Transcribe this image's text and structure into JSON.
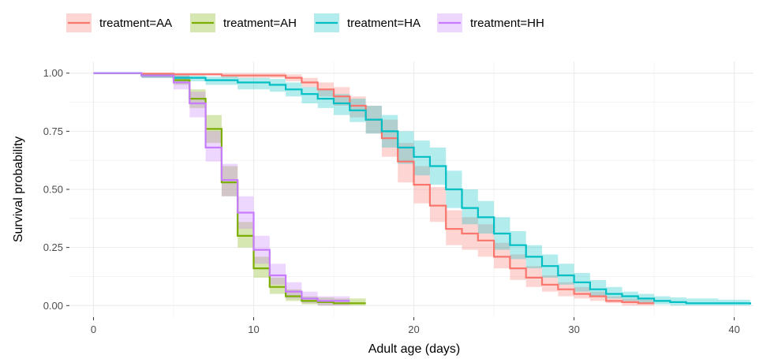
{
  "chart_data": {
    "type": "line",
    "title": "",
    "xlabel": "Adult age (days)",
    "ylabel": "Survival probability",
    "xlim": [
      -1.5,
      41.2
    ],
    "ylim": [
      -0.05,
      1.05
    ],
    "x_ticks": [
      0,
      10,
      20,
      30,
      40
    ],
    "y_ticks": [
      0.0,
      0.25,
      0.5,
      0.75,
      1.0
    ],
    "x_tick_labels": [
      "0",
      "10",
      "20",
      "30",
      "40"
    ],
    "y_tick_labels": [
      "0.00",
      "0.25",
      "0.50",
      "0.75",
      "1.00"
    ],
    "grid": true,
    "legend_position": "top",
    "step": true,
    "series": [
      {
        "name": "treatment=AA",
        "color": "#F8766D",
        "x": [
          0,
          3,
          5,
          8,
          12,
          13,
          14,
          15,
          16,
          17,
          18,
          19,
          20,
          21,
          22,
          23,
          24,
          25,
          26,
          27,
          28,
          29,
          30,
          31,
          32,
          33,
          34,
          35
        ],
        "y": [
          1.0,
          0.998,
          0.995,
          0.99,
          0.98,
          0.96,
          0.93,
          0.9,
          0.86,
          0.8,
          0.72,
          0.62,
          0.52,
          0.43,
          0.33,
          0.31,
          0.28,
          0.21,
          0.16,
          0.12,
          0.09,
          0.07,
          0.05,
          0.04,
          0.02,
          0.015,
          0.01,
          0.01
        ],
        "lower": [
          1.0,
          0.995,
          0.99,
          0.98,
          0.965,
          0.94,
          0.9,
          0.86,
          0.81,
          0.74,
          0.64,
          0.53,
          0.44,
          0.36,
          0.26,
          0.24,
          0.21,
          0.16,
          0.11,
          0.08,
          0.06,
          0.04,
          0.03,
          0.02,
          0.01,
          0.0,
          0.0,
          0.0
        ],
        "upper": [
          1.0,
          1.0,
          1.0,
          1.0,
          0.995,
          0.98,
          0.96,
          0.94,
          0.9,
          0.86,
          0.8,
          0.7,
          0.6,
          0.51,
          0.41,
          0.38,
          0.35,
          0.27,
          0.22,
          0.17,
          0.13,
          0.1,
          0.08,
          0.06,
          0.04,
          0.03,
          0.025,
          0.02
        ]
      },
      {
        "name": "treatment=AH",
        "color": "#7CAE00",
        "x": [
          0,
          3,
          5,
          6,
          7,
          8,
          9,
          10,
          11,
          12,
          13,
          14,
          15,
          16,
          17
        ],
        "y": [
          1.0,
          0.99,
          0.97,
          0.89,
          0.76,
          0.53,
          0.3,
          0.16,
          0.08,
          0.04,
          0.02,
          0.015,
          0.01,
          0.01,
          0.01
        ],
        "lower": [
          1.0,
          0.98,
          0.95,
          0.85,
          0.7,
          0.47,
          0.25,
          0.12,
          0.05,
          0.02,
          0.005,
          0.0,
          0.0,
          0.0,
          0.0
        ],
        "upper": [
          1.0,
          1.0,
          0.99,
          0.93,
          0.82,
          0.6,
          0.36,
          0.21,
          0.12,
          0.07,
          0.04,
          0.035,
          0.03,
          0.03,
          0.03
        ]
      },
      {
        "name": "treatment=HA",
        "color": "#00BFC4",
        "x": [
          0,
          3,
          5,
          7,
          9,
          11,
          12,
          13,
          14,
          15,
          16,
          17,
          18,
          19,
          20,
          21,
          22,
          23,
          24,
          25,
          26,
          27,
          28,
          29,
          30,
          31,
          32,
          33,
          34,
          35,
          36,
          37,
          38,
          39,
          40,
          41
        ],
        "y": [
          1.0,
          0.99,
          0.98,
          0.97,
          0.96,
          0.95,
          0.93,
          0.91,
          0.89,
          0.87,
          0.84,
          0.8,
          0.75,
          0.68,
          0.64,
          0.6,
          0.5,
          0.42,
          0.38,
          0.31,
          0.26,
          0.21,
          0.17,
          0.13,
          0.1,
          0.07,
          0.05,
          0.04,
          0.03,
          0.02,
          0.015,
          0.01,
          0.01,
          0.01,
          0.01,
          0.005
        ],
        "lower": [
          1.0,
          0.98,
          0.965,
          0.95,
          0.93,
          0.92,
          0.9,
          0.87,
          0.85,
          0.82,
          0.79,
          0.74,
          0.68,
          0.61,
          0.56,
          0.52,
          0.42,
          0.35,
          0.31,
          0.24,
          0.2,
          0.16,
          0.12,
          0.09,
          0.06,
          0.04,
          0.03,
          0.02,
          0.01,
          0.005,
          0.0,
          0.0,
          0.0,
          0.0,
          0.0,
          0.0
        ],
        "upper": [
          1.0,
          1.0,
          0.99,
          0.985,
          0.98,
          0.975,
          0.96,
          0.94,
          0.93,
          0.91,
          0.89,
          0.86,
          0.82,
          0.75,
          0.71,
          0.68,
          0.58,
          0.5,
          0.45,
          0.38,
          0.32,
          0.26,
          0.22,
          0.18,
          0.14,
          0.11,
          0.08,
          0.06,
          0.05,
          0.04,
          0.035,
          0.03,
          0.03,
          0.025,
          0.025,
          0.02
        ]
      },
      {
        "name": "treatment=HH",
        "color": "#C77CFF",
        "x": [
          0,
          3,
          5,
          6,
          7,
          8,
          9,
          10,
          11,
          12,
          13,
          14,
          15,
          16
        ],
        "y": [
          1.0,
          0.99,
          0.96,
          0.87,
          0.68,
          0.54,
          0.4,
          0.24,
          0.13,
          0.06,
          0.03,
          0.02,
          0.02,
          0.02
        ],
        "lower": [
          1.0,
          0.98,
          0.93,
          0.81,
          0.62,
          0.47,
          0.33,
          0.18,
          0.09,
          0.03,
          0.01,
          0.0,
          0.0,
          0.0
        ],
        "upper": [
          1.0,
          1.0,
          0.99,
          0.92,
          0.75,
          0.61,
          0.47,
          0.3,
          0.18,
          0.1,
          0.06,
          0.04,
          0.04,
          0.04
        ]
      }
    ]
  }
}
